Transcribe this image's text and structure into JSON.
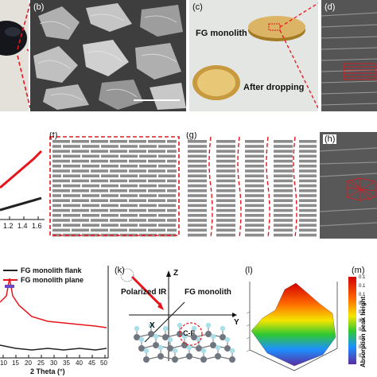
{
  "panels": {
    "a": {
      "label": ""
    },
    "b": {
      "label": "(b)"
    },
    "c": {
      "label": "(c)",
      "monolith_text": "FG monolith",
      "dropping_text": "After dropping"
    },
    "d": {
      "label": "(d)"
    },
    "e": {
      "label": "",
      "tick_labels": [
        "1.2",
        "1.4",
        "1.6"
      ]
    },
    "f": {
      "label": "(f)"
    },
    "g": {
      "label": "(g)"
    },
    "h": {
      "label": "(h)"
    },
    "j": {
      "label": "",
      "legend": [
        "FG monolith flank",
        "FG monolith plane"
      ],
      "xlabel": "2 Theta (°)",
      "tick_labels": [
        "10",
        "15",
        "20",
        "25",
        "30",
        "35",
        "40",
        "45",
        "50"
      ]
    },
    "k": {
      "label": "(k)",
      "polarized_text": "Polarized IR",
      "monolith_text": "FG monolith",
      "axis_z": "Z",
      "axis_x": "X",
      "axis_y": "Y",
      "bond_text": "C-F"
    },
    "l": {
      "label": "(l)"
    },
    "m": {
      "label": "(m)",
      "colorbar_title": "Absorption peak height",
      "colorbar_ticks": [
        "0.1",
        "0.1",
        "0.1",
        "0.1",
        "0.1",
        "0.1",
        "0.1",
        "0.1",
        "0.1",
        "0.1"
      ]
    }
  },
  "colors": {
    "red": "#e8141c",
    "gray_brick": "#8c8c8c",
    "sem_dark": "#3a3a3a",
    "gold": "#c9a24a"
  }
}
